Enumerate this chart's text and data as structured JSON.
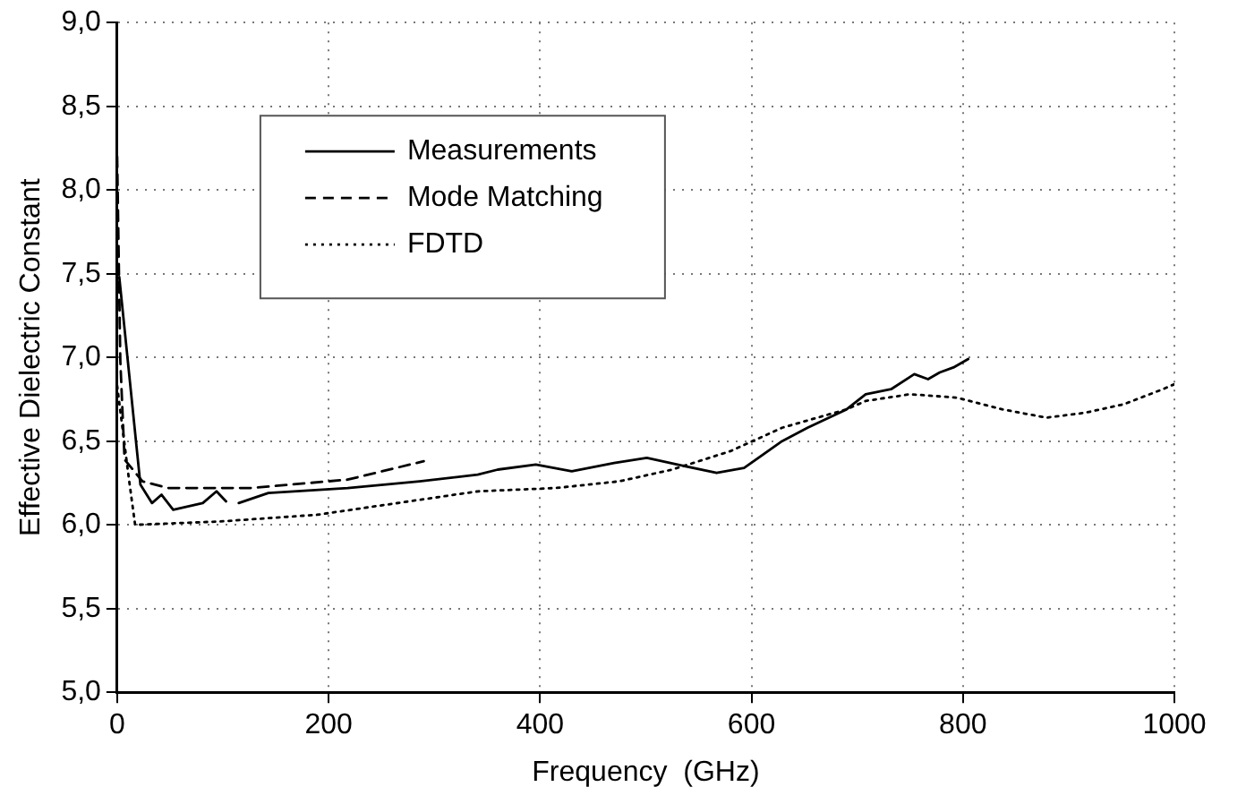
{
  "chart_data": {
    "type": "line",
    "xlabel": "Frequency  (GHz)",
    "ylabel": "Effective Dielectric Constant",
    "xlim": [
      0,
      1000
    ],
    "ylim": [
      5,
      9
    ],
    "xticks": [
      0,
      200,
      400,
      600,
      800,
      1000
    ],
    "yticks": [
      {
        "value": 5,
        "label": "5,0"
      },
      {
        "value": 5.5,
        "label": "5,5"
      },
      {
        "value": 6,
        "label": "6,0"
      },
      {
        "value": 6.5,
        "label": "6,5"
      },
      {
        "value": 7,
        "label": "7,0"
      },
      {
        "value": 7.5,
        "label": "7,5"
      },
      {
        "value": 8,
        "label": "8,0"
      },
      {
        "value": 8.5,
        "label": "8,5"
      },
      {
        "value": 9,
        "label": "9,0"
      }
    ],
    "grid": true,
    "legend": "top left",
    "marker": "none",
    "series": [
      {
        "name": "Measurements",
        "color": "#000000",
        "line_style": "solid",
        "x": [
          2,
          22,
          33,
          42,
          53,
          81,
          94,
          103,
          109,
          115,
          143,
          218,
          286,
          341,
          360,
          396,
          430,
          470,
          501,
          530,
          567,
          593,
          629,
          653,
          690,
          708,
          732,
          754,
          767,
          778,
          791,
          805
        ],
        "values": [
          7.48,
          6.24,
          6.13,
          6.18,
          6.09,
          6.13,
          6.2,
          6.14,
          null,
          6.13,
          6.19,
          6.22,
          6.26,
          6.3,
          6.33,
          6.36,
          6.32,
          6.37,
          6.4,
          6.36,
          6.31,
          6.34,
          6.5,
          6.58,
          6.69,
          6.78,
          6.81,
          6.9,
          6.87,
          6.91,
          6.94,
          6.99
        ]
      },
      {
        "name": "Mode Matching",
        "color": "#000000",
        "line_style": "dashed",
        "x": [
          0,
          3,
          7,
          24,
          48,
          127,
          218,
          290
        ],
        "values": [
          8.2,
          6.98,
          6.39,
          6.26,
          6.22,
          6.22,
          6.27,
          6.38
        ]
      },
      {
        "name": "FDTD",
        "color": "#000000",
        "line_style": "dotted",
        "x": [
          0,
          11,
          17,
          97,
          189,
          341,
          415,
          475,
          525,
          580,
          629,
          690,
          708,
          750,
          794,
          837,
          879,
          916,
          952,
          989,
          1000
        ],
        "values": [
          6.83,
          6.28,
          6.0,
          6.02,
          6.06,
          6.2,
          6.22,
          6.26,
          6.33,
          6.44,
          6.58,
          6.69,
          6.74,
          6.78,
          6.76,
          6.69,
          6.64,
          6.67,
          6.72,
          6.81,
          6.84
        ]
      }
    ]
  }
}
